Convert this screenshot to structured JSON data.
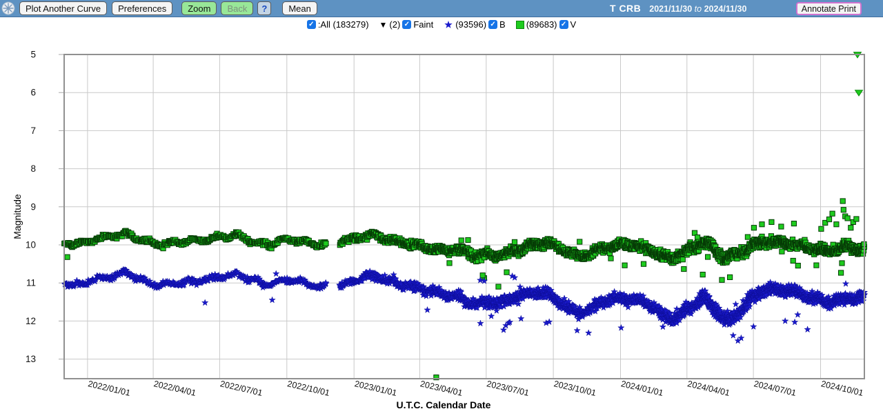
{
  "toolbar": {
    "logo_icon": "aavso-snowflake-globe-icon",
    "plot_another_label": "Plot Another Curve",
    "preferences_label": "Preferences",
    "zoom_label": "Zoom",
    "back_label": "Back",
    "help_label": "?",
    "mean_label": "Mean",
    "star_name": "T CRB",
    "date_start": "2021/11/30",
    "date_to": "to",
    "date_end": "2024/11/30",
    "annotate_label": "Annotate Print"
  },
  "legend": {
    "all_label": ":All (183279)",
    "faint_marker": "▼",
    "faint_count": "(2)",
    "faint_label": "Faint",
    "b_count": "(93596)",
    "b_label": "B",
    "v_count": "(89683)",
    "v_label": "V"
  },
  "colors": {
    "header_bg": "#5e92c2",
    "active_button": "#98e798",
    "annotate_border": "#cf72cf",
    "checkbox_blue": "#1674e7",
    "v_green": "#1ecb1e",
    "v_edge": "#063c06",
    "b_blue": "#1a1acc",
    "grid": "#c9c9c9",
    "plot_border": "#909090"
  },
  "chart_data": {
    "type": "scatter",
    "title": "T CRB",
    "xlabel": "U.T.C. Calendar Date",
    "ylabel": "Magnitude",
    "y_inverted": true,
    "ylim": [
      13.5,
      5
    ],
    "yticks": [
      5,
      6,
      7,
      8,
      9,
      10,
      11,
      12,
      13
    ],
    "grid": true,
    "legend_position": "top",
    "total_count": 183279,
    "date_range": {
      "start": "2021/11/30",
      "end": "2024/11/30",
      "days": 1096
    },
    "xticks": [
      {
        "label": "2022/01/01",
        "f": 0.0292
      },
      {
        "label": "2022/04/01",
        "f": 0.1113
      },
      {
        "label": "2022/07/01",
        "f": 0.1943
      },
      {
        "label": "2022/10/01",
        "f": 0.2783
      },
      {
        "label": "2023/01/01",
        "f": 0.3622
      },
      {
        "label": "2023/04/01",
        "f": 0.4443
      },
      {
        "label": "2023/07/01",
        "f": 0.5274
      },
      {
        "label": "2023/10/01",
        "f": 0.6113
      },
      {
        "label": "2024/01/01",
        "f": 0.6953
      },
      {
        "label": "2024/04/01",
        "f": 0.7783
      },
      {
        "label": "2024/07/01",
        "f": 0.8613
      },
      {
        "label": "2024/10/01",
        "f": 0.9453
      }
    ],
    "gaps": [
      [
        0.3276,
        0.344
      ]
    ],
    "density_profile": [
      [
        0,
        1.2
      ],
      [
        0.3,
        1.3
      ],
      [
        0.36,
        1.8
      ],
      [
        0.45,
        2.4
      ],
      [
        0.55,
        3.2
      ],
      [
        0.65,
        3.0
      ],
      [
        0.75,
        3.4
      ],
      [
        0.85,
        3.8
      ],
      [
        1,
        4.0
      ]
    ],
    "fainter_than": {
      "series": "V",
      "points": [
        [
          0.9914,
          5.0
        ],
        [
          0.9931,
          6.0
        ]
      ]
    },
    "series": [
      {
        "name": "V",
        "marker": "square",
        "color": "#1ecb1e",
        "edge": "#063c06",
        "count": 89683,
        "mean_curve": [
          [
            0,
            9.95
          ],
          [
            0.013,
            10.0
          ],
          [
            0.032,
            9.9
          ],
          [
            0.049,
            9.82
          ],
          [
            0.065,
            9.75
          ],
          [
            0.079,
            9.7
          ],
          [
            0.092,
            9.84
          ],
          [
            0.105,
            9.94
          ],
          [
            0.122,
            10.0
          ],
          [
            0.14,
            9.94
          ],
          [
            0.166,
            9.9
          ],
          [
            0.195,
            9.8
          ],
          [
            0.217,
            9.76
          ],
          [
            0.232,
            9.88
          ],
          [
            0.247,
            9.97
          ],
          [
            0.258,
            10.0
          ],
          [
            0.269,
            9.9
          ],
          [
            0.283,
            9.86
          ],
          [
            0.296,
            9.9
          ],
          [
            0.309,
            9.96
          ],
          [
            0.322,
            10.0
          ],
          [
            0.347,
            9.9
          ],
          [
            0.36,
            9.85
          ],
          [
            0.373,
            9.79
          ],
          [
            0.386,
            9.74
          ],
          [
            0.399,
            9.81
          ],
          [
            0.412,
            9.9
          ],
          [
            0.425,
            9.96
          ],
          [
            0.438,
            10.01
          ],
          [
            0.451,
            10.07
          ],
          [
            0.464,
            10.11
          ],
          [
            0.477,
            10.16
          ],
          [
            0.49,
            10.11
          ],
          [
            0.503,
            10.2
          ],
          [
            0.516,
            10.3
          ],
          [
            0.529,
            10.26
          ],
          [
            0.541,
            10.3
          ],
          [
            0.554,
            10.24
          ],
          [
            0.567,
            10.13
          ],
          [
            0.58,
            10.04
          ],
          [
            0.593,
            9.97
          ],
          [
            0.606,
            9.95
          ],
          [
            0.619,
            10.07
          ],
          [
            0.632,
            10.22
          ],
          [
            0.645,
            10.32
          ],
          [
            0.658,
            10.23
          ],
          [
            0.671,
            10.1
          ],
          [
            0.684,
            10.04
          ],
          [
            0.697,
            10.0
          ],
          [
            0.71,
            10.0
          ],
          [
            0.723,
            10.07
          ],
          [
            0.735,
            10.13
          ],
          [
            0.748,
            10.3
          ],
          [
            0.761,
            10.34
          ],
          [
            0.774,
            10.23
          ],
          [
            0.787,
            10.07
          ],
          [
            0.8,
            9.9
          ],
          [
            0.813,
            10.13
          ],
          [
            0.826,
            10.35
          ],
          [
            0.839,
            10.27
          ],
          [
            0.852,
            10.13
          ],
          [
            0.865,
            9.97
          ],
          [
            0.878,
            9.9
          ],
          [
            0.891,
            9.96
          ],
          [
            0.904,
            9.94
          ],
          [
            0.917,
            10.0
          ],
          [
            0.929,
            10.06
          ],
          [
            0.942,
            10.12
          ],
          [
            0.955,
            10.16
          ],
          [
            0.968,
            10.1
          ],
          [
            0.981,
            10.06
          ],
          [
            1,
            10.12
          ]
        ],
        "sigma_profile": [
          [
            0,
            0.055
          ],
          [
            0.3,
            0.06
          ],
          [
            0.38,
            0.075
          ],
          [
            0.45,
            0.1
          ],
          [
            0.55,
            0.105
          ],
          [
            0.65,
            0.11
          ],
          [
            0.75,
            0.12
          ],
          [
            0.83,
            0.13
          ],
          [
            0.9,
            0.115
          ],
          [
            1,
            0.11
          ]
        ],
        "outliers": [
          [
            0.004,
            10.32
          ],
          [
            0.465,
            13.48
          ],
          [
            0.523,
            10.8
          ],
          [
            0.553,
            10.72
          ],
          [
            0.798,
            10.78
          ],
          [
            0.822,
            10.92
          ],
          [
            0.832,
            10.85
          ],
          [
            0.862,
            9.55
          ],
          [
            0.872,
            9.46
          ],
          [
            0.884,
            9.4
          ],
          [
            0.896,
            9.52
          ],
          [
            0.912,
            9.44
          ],
          [
            0.946,
            9.58
          ],
          [
            0.951,
            9.42
          ],
          [
            0.956,
            9.33
          ],
          [
            0.96,
            9.18
          ],
          [
            0.965,
            9.46
          ],
          [
            0.973,
            8.85
          ],
          [
            0.974,
            9.08
          ],
          [
            0.976,
            9.25
          ],
          [
            0.979,
            9.3
          ],
          [
            0.983,
            9.55
          ],
          [
            0.986,
            9.4
          ],
          [
            0.99,
            9.32
          ]
        ]
      },
      {
        "name": "B",
        "marker": "star",
        "color": "#1a1acc",
        "edge": "#0d0d99",
        "count": 93596,
        "mean_curve": [
          [
            0,
            11.0
          ],
          [
            0.013,
            11.07
          ],
          [
            0.032,
            10.95
          ],
          [
            0.049,
            10.88
          ],
          [
            0.065,
            10.8
          ],
          [
            0.079,
            10.73
          ],
          [
            0.092,
            10.88
          ],
          [
            0.105,
            11.0
          ],
          [
            0.122,
            11.06
          ],
          [
            0.14,
            11.0
          ],
          [
            0.166,
            10.95
          ],
          [
            0.195,
            10.85
          ],
          [
            0.217,
            10.77
          ],
          [
            0.232,
            10.9
          ],
          [
            0.247,
            11.01
          ],
          [
            0.258,
            11.05
          ],
          [
            0.269,
            10.96
          ],
          [
            0.283,
            10.92
          ],
          [
            0.296,
            10.97
          ],
          [
            0.309,
            11.05
          ],
          [
            0.322,
            11.1
          ],
          [
            0.347,
            11.09
          ],
          [
            0.36,
            10.95
          ],
          [
            0.373,
            10.86
          ],
          [
            0.386,
            10.8
          ],
          [
            0.399,
            10.89
          ],
          [
            0.412,
            11.0
          ],
          [
            0.425,
            11.06
          ],
          [
            0.438,
            11.12
          ],
          [
            0.451,
            11.18
          ],
          [
            0.464,
            11.23
          ],
          [
            0.477,
            11.3
          ],
          [
            0.49,
            11.36
          ],
          [
            0.503,
            11.5
          ],
          [
            0.516,
            11.56
          ],
          [
            0.529,
            11.5
          ],
          [
            0.541,
            11.55
          ],
          [
            0.554,
            11.47
          ],
          [
            0.567,
            11.37
          ],
          [
            0.58,
            11.28
          ],
          [
            0.593,
            11.23
          ],
          [
            0.606,
            11.3
          ],
          [
            0.619,
            11.48
          ],
          [
            0.632,
            11.68
          ],
          [
            0.645,
            11.8
          ],
          [
            0.658,
            11.67
          ],
          [
            0.671,
            11.5
          ],
          [
            0.684,
            11.43
          ],
          [
            0.697,
            11.4
          ],
          [
            0.71,
            11.44
          ],
          [
            0.723,
            11.5
          ],
          [
            0.735,
            11.58
          ],
          [
            0.748,
            11.86
          ],
          [
            0.761,
            11.94
          ],
          [
            0.774,
            11.77
          ],
          [
            0.787,
            11.57
          ],
          [
            0.8,
            11.38
          ],
          [
            0.813,
            11.68
          ],
          [
            0.826,
            12.0
          ],
          [
            0.839,
            11.86
          ],
          [
            0.852,
            11.56
          ],
          [
            0.865,
            11.3
          ],
          [
            0.878,
            11.14
          ],
          [
            0.891,
            11.2
          ],
          [
            0.904,
            11.2
          ],
          [
            0.917,
            11.26
          ],
          [
            0.929,
            11.33
          ],
          [
            0.942,
            11.42
          ],
          [
            0.955,
            11.5
          ],
          [
            0.968,
            11.44
          ],
          [
            0.981,
            11.4
          ],
          [
            1,
            11.37
          ]
        ],
        "sigma_profile": [
          [
            0,
            0.065
          ],
          [
            0.3,
            0.07
          ],
          [
            0.38,
            0.09
          ],
          [
            0.45,
            0.12
          ],
          [
            0.55,
            0.13
          ],
          [
            0.65,
            0.13
          ],
          [
            0.75,
            0.145
          ],
          [
            0.83,
            0.175
          ],
          [
            0.9,
            0.14
          ],
          [
            1,
            0.13
          ]
        ],
        "outliers": [
          [
            0.176,
            11.52
          ],
          [
            0.26,
            11.45
          ],
          [
            0.52,
            10.93
          ],
          [
            0.525,
            10.95
          ],
          [
            0.56,
            10.82
          ],
          [
            0.563,
            10.86
          ],
          [
            0.552,
            12.12
          ],
          [
            0.557,
            12.03
          ],
          [
            0.641,
            12.25
          ],
          [
            0.696,
            12.18
          ],
          [
            0.836,
            12.38
          ],
          [
            0.842,
            12.52
          ],
          [
            0.846,
            12.45
          ],
          [
            0.901,
            12.0
          ],
          [
            0.913,
            12.03
          ]
        ]
      }
    ]
  }
}
